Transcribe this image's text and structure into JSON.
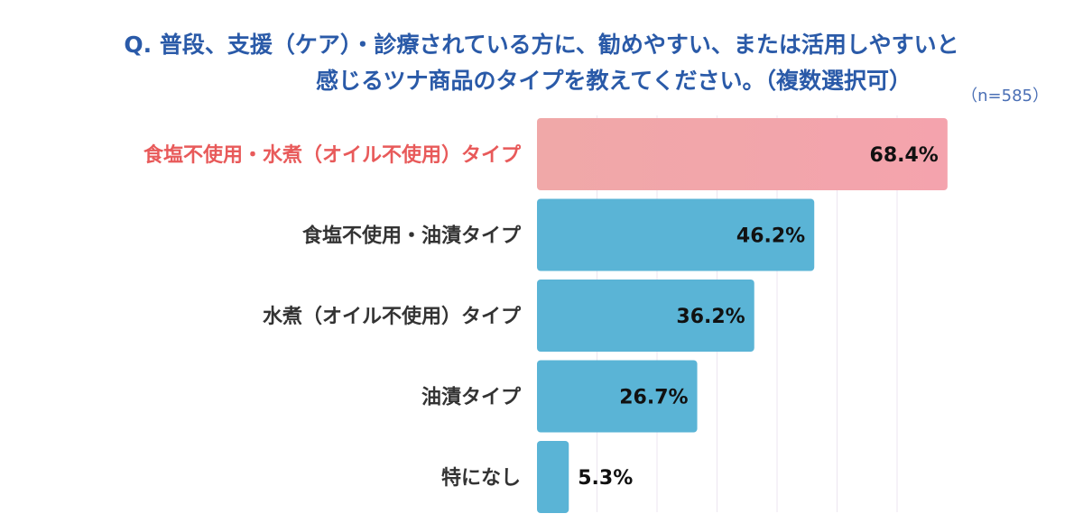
{
  "question": {
    "line1": "Q. 普段、支援（ケア）・診療されている方に、勧めやすい、または活用しやすいと",
    "line2": "感じるツナ商品のタイプを教えてください。（複数選択可）"
  },
  "sample_note": "（n=585）",
  "colors": {
    "title": "#2a5aa8",
    "bar_default": "#5ab4d6",
    "bar_highlight_start": "#f0a8a8",
    "bar_highlight_end": "#f4a3ad",
    "label_highlight": "#e85a5a",
    "gridline": "#ece6f0"
  },
  "chart_data": {
    "type": "bar",
    "orientation": "horizontal",
    "categories": [
      "食塩不使用・水煮（オイル不使用）タイプ",
      "食塩不使用・油漬タイプ",
      "水煮（オイル不使用）タイプ",
      "油漬タイプ",
      "特になし"
    ],
    "values": [
      68.4,
      46.2,
      36.2,
      26.7,
      5.3
    ],
    "value_labels": [
      "68.4%",
      "46.2%",
      "36.2%",
      "26.7%",
      "5.3%"
    ],
    "highlight_index": 0,
    "xlim": [
      0,
      100
    ],
    "grid": true,
    "title": "",
    "xlabel": "",
    "ylabel": ""
  }
}
